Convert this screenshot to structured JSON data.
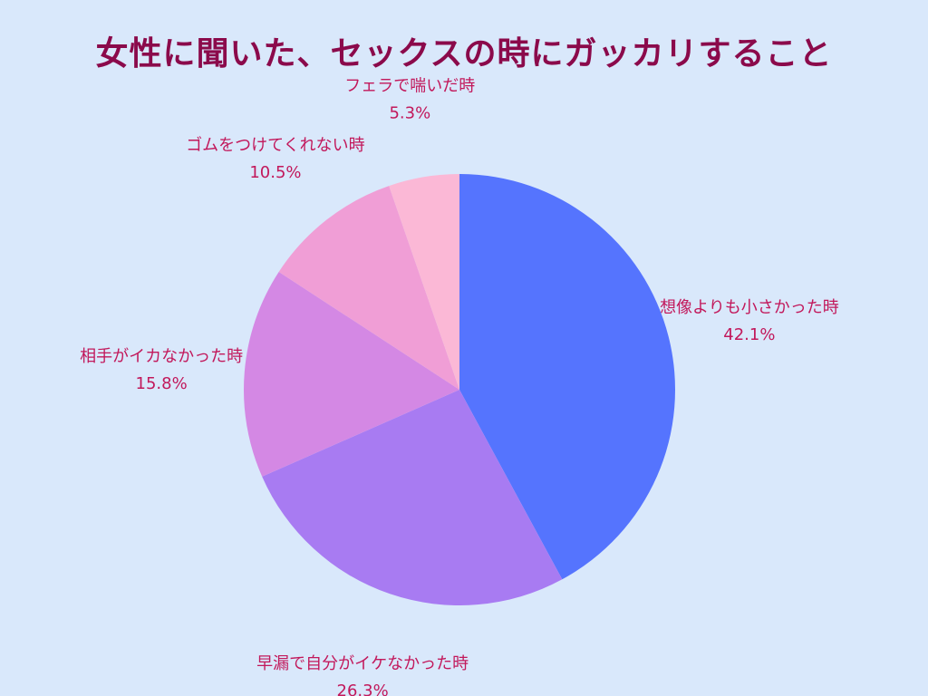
{
  "colors": {
    "background": "#d9e8fb",
    "title": "#8b0a4b",
    "label": "#c2185b"
  },
  "chart_data": {
    "type": "pie",
    "title": "女性に聞いた、セックスの時にガッカリすること",
    "start": "12 o'clock",
    "direction": "clockwise",
    "slices": [
      {
        "label": "想像よりも小さかった時",
        "value": 42.1,
        "value_label": "42.1%",
        "color": "#5574fe"
      },
      {
        "label": "早漏で自分がイケなかった時",
        "value": 26.3,
        "value_label": "26.3%",
        "color": "#a87bf2"
      },
      {
        "label": "相手がイカなかった時",
        "value": 15.8,
        "value_label": "15.8%",
        "color": "#d488e4"
      },
      {
        "label": "ゴムをつけてくれない時",
        "value": 10.5,
        "value_label": "10.5%",
        "color": "#f09ed6"
      },
      {
        "label": "フェラで喘いだ時",
        "value": 5.3,
        "value_label": "5.3%",
        "color": "#fbb8d6"
      }
    ]
  }
}
